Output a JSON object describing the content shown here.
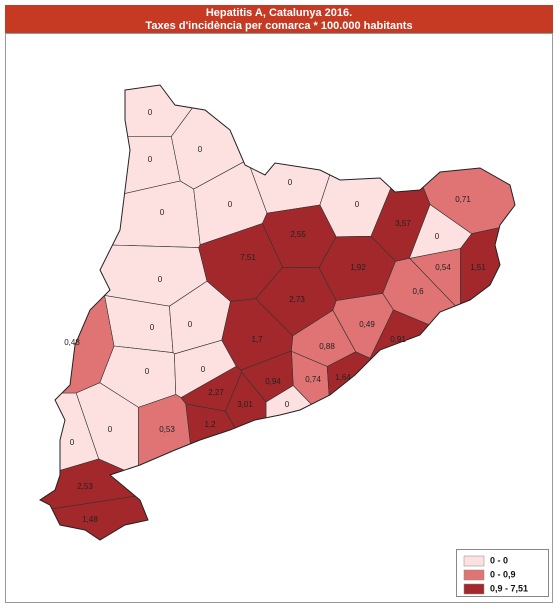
{
  "map": {
    "title": "Hepatitis A, Catalunya 2016.",
    "subtitle": "Taxes d'incidència per comarca * 100.000 habitants",
    "legend": [
      {
        "label": "0 - 0",
        "color": "#fde1e1"
      },
      {
        "label": "0 - 0,9",
        "color": "#e07474"
      },
      {
        "label": "0,9 - 7,51",
        "color": "#a3282c"
      }
    ],
    "regions": [
      {
        "label": "0",
        "color": "#fde1e1"
      },
      {
        "label": "0",
        "color": "#fde1e1"
      },
      {
        "label": "0",
        "color": "#fde1e1"
      },
      {
        "label": "0",
        "color": "#fde1e1"
      },
      {
        "label": "0",
        "color": "#fde1e1"
      },
      {
        "label": "0",
        "color": "#fde1e1"
      },
      {
        "label": "0",
        "color": "#fde1e1"
      },
      {
        "label": "0",
        "color": "#fde1e1"
      },
      {
        "label": "0",
        "color": "#fde1e1"
      },
      {
        "label": "0",
        "color": "#fde1e1"
      },
      {
        "label": "0",
        "color": "#fde1e1"
      },
      {
        "label": "0",
        "color": "#fde1e1"
      },
      {
        "label": "0",
        "color": "#fde1e1"
      },
      {
        "label": "0",
        "color": "#fde1e1"
      },
      {
        "label": "0",
        "color": "#fde1e1"
      },
      {
        "label": "0",
        "color": "#fde1e1"
      },
      {
        "label": "0,71",
        "color": "#e07474"
      },
      {
        "label": "0,48",
        "color": "#e07474"
      },
      {
        "label": "0,54",
        "color": "#e07474"
      },
      {
        "label": "0,6",
        "color": "#e07474"
      },
      {
        "label": "0,49",
        "color": "#e07474"
      },
      {
        "label": "0,88",
        "color": "#e07474"
      },
      {
        "label": "0,74",
        "color": "#e07474"
      },
      {
        "label": "0,53",
        "color": "#e07474"
      },
      {
        "label": "7,51",
        "color": "#a3282c"
      },
      {
        "label": "2,55",
        "color": "#a3282c"
      },
      {
        "label": "3,57",
        "color": "#a3282c"
      },
      {
        "label": "1,51",
        "color": "#a3282c"
      },
      {
        "label": "1,92",
        "color": "#a3282c"
      },
      {
        "label": "2,73",
        "color": "#a3282c"
      },
      {
        "label": "1,7",
        "color": "#a3282c"
      },
      {
        "label": "0,91",
        "color": "#a3282c"
      },
      {
        "label": "0,94",
        "color": "#a3282c"
      },
      {
        "label": "1,64",
        "color": "#a3282c"
      },
      {
        "label": "2,27",
        "color": "#a3282c"
      },
      {
        "label": "3,01",
        "color": "#a3282c"
      },
      {
        "label": "1,2",
        "color": "#a3282c"
      },
      {
        "label": "2,53",
        "color": "#a3282c"
      },
      {
        "label": "1,48",
        "color": "#a3282c"
      }
    ]
  }
}
